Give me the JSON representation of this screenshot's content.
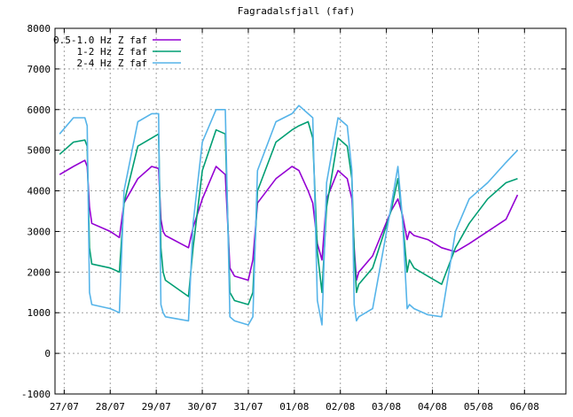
{
  "chart_data": {
    "type": "line",
    "title": "Fagradalsfjall (faf)",
    "xlabel": "",
    "ylabel": "",
    "ylim": [
      -1000,
      8000
    ],
    "yticks": [
      -1000,
      0,
      1000,
      2000,
      3000,
      4000,
      5000,
      6000,
      7000,
      8000
    ],
    "xlim": [
      -0.2,
      10.9
    ],
    "xticks": [
      {
        "label": "27/07",
        "x": 0
      },
      {
        "label": "28/07",
        "x": 1
      },
      {
        "label": "29/07",
        "x": 2
      },
      {
        "label": "30/07",
        "x": 3
      },
      {
        "label": "31/07",
        "x": 4
      },
      {
        "label": "01/08",
        "x": 5
      },
      {
        "label": "02/08",
        "x": 6
      },
      {
        "label": "03/08",
        "x": 7
      },
      {
        "label": "04/08",
        "x": 8
      },
      {
        "label": "05/08",
        "x": 9
      },
      {
        "label": "06/08",
        "x": 10
      }
    ],
    "x_unit": "days since 27/07",
    "grid": true,
    "legend_position": "top-left",
    "series": [
      {
        "name": "0.5-1.0 Hz Z faf",
        "color": "#9400d3",
        "x": [
          -0.1,
          0.2,
          0.45,
          0.5,
          0.55,
          0.6,
          1.0,
          1.2,
          1.3,
          1.6,
          1.9,
          2.05,
          2.1,
          2.15,
          2.2,
          2.7,
          2.8,
          3.0,
          3.3,
          3.5,
          3.6,
          3.7,
          4.0,
          4.1,
          4.2,
          4.6,
          4.95,
          5.1,
          5.3,
          5.4,
          5.5,
          5.6,
          5.7,
          5.95,
          6.15,
          6.25,
          6.3,
          6.35,
          6.4,
          6.7,
          7.1,
          7.25,
          7.35,
          7.45,
          7.5,
          7.6,
          7.9,
          8.2,
          8.5,
          8.8,
          9.2,
          9.6,
          9.85
        ],
        "y": [
          4400,
          4600,
          4750,
          4600,
          3600,
          3200,
          3000,
          2850,
          3700,
          4300,
          4600,
          4550,
          3300,
          3000,
          2900,
          2600,
          3100,
          3800,
          4600,
          4400,
          2100,
          1900,
          1800,
          2300,
          3700,
          4300,
          4600,
          4500,
          4000,
          3700,
          2700,
          2300,
          3800,
          4500,
          4300,
          3800,
          2600,
          1800,
          2000,
          2400,
          3500,
          3800,
          3400,
          2800,
          3000,
          2900,
          2800,
          2600,
          2500,
          2700,
          3000,
          3300,
          3900
        ]
      },
      {
        "name": "1-2 Hz Z faf",
        "color": "#009e73",
        "x": [
          -0.1,
          0.2,
          0.45,
          0.5,
          0.55,
          0.6,
          1.0,
          1.2,
          1.3,
          1.6,
          1.9,
          2.05,
          2.1,
          2.15,
          2.2,
          2.7,
          2.8,
          3.0,
          3.3,
          3.5,
          3.6,
          3.7,
          4.0,
          4.1,
          4.2,
          4.6,
          4.95,
          5.1,
          5.3,
          5.4,
          5.5,
          5.6,
          5.7,
          5.95,
          6.15,
          6.25,
          6.3,
          6.35,
          6.4,
          6.7,
          7.1,
          7.25,
          7.35,
          7.45,
          7.5,
          7.6,
          7.9,
          8.2,
          8.5,
          8.8,
          9.2,
          9.6,
          9.85
        ],
        "y": [
          4900,
          5200,
          5250,
          5100,
          2600,
          2200,
          2100,
          2000,
          3700,
          5100,
          5300,
          5400,
          2600,
          2000,
          1800,
          1400,
          2600,
          4500,
          5500,
          5400,
          1500,
          1300,
          1200,
          1500,
          4000,
          5200,
          5500,
          5600,
          5700,
          5300,
          2500,
          1500,
          3600,
          5300,
          5100,
          4300,
          2500,
          1500,
          1700,
          2100,
          3500,
          4300,
          3300,
          2000,
          2300,
          2100,
          1900,
          1700,
          2600,
          3200,
          3800,
          4200,
          4300
        ]
      },
      {
        "name": "2-4 Hz Z faf",
        "color": "#56b4e9",
        "x": [
          -0.1,
          0.2,
          0.45,
          0.5,
          0.55,
          0.6,
          1.0,
          1.2,
          1.3,
          1.6,
          1.9,
          2.05,
          2.1,
          2.15,
          2.2,
          2.7,
          2.8,
          3.0,
          3.3,
          3.5,
          3.6,
          3.7,
          4.0,
          4.1,
          4.2,
          4.6,
          4.95,
          5.1,
          5.3,
          5.4,
          5.5,
          5.6,
          5.7,
          5.95,
          6.15,
          6.25,
          6.3,
          6.35,
          6.4,
          6.7,
          7.1,
          7.25,
          7.35,
          7.45,
          7.5,
          7.6,
          7.9,
          8.2,
          8.5,
          8.8,
          9.2,
          9.6,
          9.85
        ],
        "y": [
          5400,
          5800,
          5800,
          5600,
          1500,
          1200,
          1100,
          1000,
          4000,
          5700,
          5900,
          5900,
          1200,
          1000,
          900,
          800,
          3200,
          5200,
          6000,
          6000,
          900,
          800,
          700,
          900,
          4500,
          5700,
          5900,
          6100,
          5900,
          5800,
          1300,
          700,
          4200,
          5800,
          5600,
          4500,
          1200,
          800,
          900,
          1100,
          3600,
          4600,
          3300,
          1100,
          1200,
          1100,
          950,
          900,
          3000,
          3800,
          4200,
          4700,
          5000
        ]
      }
    ]
  }
}
